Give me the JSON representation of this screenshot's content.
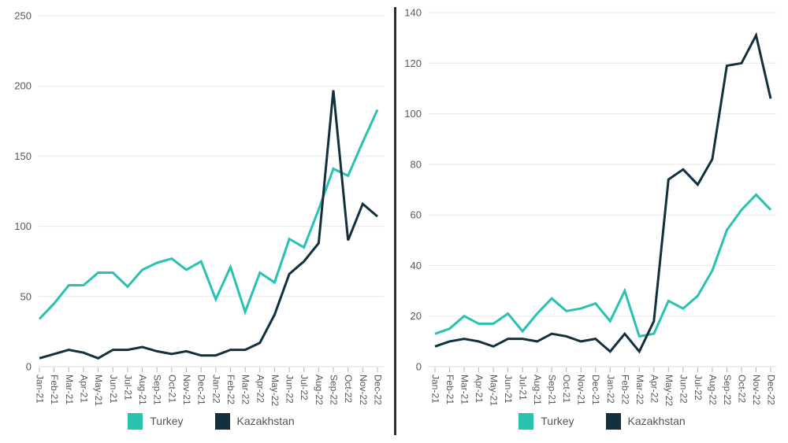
{
  "colors": {
    "turkey": "#29C2B1",
    "kazakhstan": "#12303E",
    "grid": "#E8E8E8",
    "zero_line": "#DCDCDC",
    "tick": "#B5B5B5",
    "axis_text": "#57585B",
    "legend_text": "#54565A",
    "divider": "#2C3033"
  },
  "chart_data": [
    {
      "type": "line",
      "title": "",
      "xlabel": "",
      "ylabel": "",
      "ylim": [
        0,
        250
      ],
      "ytick_step": 50,
      "grid": true,
      "legend_position": "bottom",
      "categories": [
        "Jan-21",
        "Feb-21",
        "Mar-21",
        "Apr-21",
        "May-21",
        "Jun-21",
        "Jul-21",
        "Aug-21",
        "Sep-21",
        "Oct-21",
        "Nov-21",
        "Dec-21",
        "Jan-22",
        "Feb-22",
        "Mar-22",
        "Apr-22",
        "May-22",
        "Jun-22",
        "Jul-22",
        "Aug-22",
        "Sep-22",
        "Oct-22",
        "Nov-22",
        "Dec-22"
      ],
      "series": [
        {
          "name": "Turkey",
          "color_key": "turkey",
          "values": [
            34,
            45,
            58,
            58,
            67,
            67,
            57,
            69,
            74,
            77,
            69,
            75,
            48,
            71,
            39,
            67,
            60,
            91,
            85,
            112,
            141,
            136,
            160,
            183
          ]
        },
        {
          "name": "Kazakhstan",
          "color_key": "kazakhstan",
          "values": [
            6,
            9,
            12,
            10,
            6,
            12,
            12,
            14,
            11,
            9,
            11,
            8,
            8,
            12,
            12,
            17,
            37,
            66,
            75,
            88,
            197,
            90,
            116,
            107
          ]
        }
      ]
    },
    {
      "type": "line",
      "title": "",
      "xlabel": "",
      "ylabel": "",
      "ylim": [
        0,
        140
      ],
      "ytick_step": 20,
      "grid": true,
      "legend_position": "bottom",
      "categories": [
        "Jan-21",
        "Feb-21",
        "Mar-21",
        "Apr-21",
        "May-21",
        "Jun-21",
        "Jul-21",
        "Aug-21",
        "Sep-21",
        "Oct-21",
        "Nov-21",
        "Dec-21",
        "Jan-22",
        "Feb-22",
        "Mar-22",
        "Apr-22",
        "May-22",
        "Jun-22",
        "Jul-22",
        "Aug-22",
        "Sep-22",
        "Oct-22",
        "Nov-22",
        "Dec-22"
      ],
      "series": [
        {
          "name": "Turkey",
          "color_key": "turkey",
          "values": [
            13,
            15,
            20,
            17,
            17,
            21,
            14,
            21,
            27,
            22,
            23,
            25,
            18,
            30,
            12,
            13,
            26,
            23,
            28,
            38,
            54,
            62,
            68,
            62
          ]
        },
        {
          "name": "Kazakhstan",
          "color_key": "kazakhstan",
          "values": [
            8,
            10,
            11,
            10,
            8,
            11,
            11,
            10,
            13,
            12,
            10,
            11,
            6,
            13,
            6,
            18,
            74,
            78,
            72,
            82,
            119,
            120,
            131,
            106
          ]
        }
      ]
    }
  ]
}
